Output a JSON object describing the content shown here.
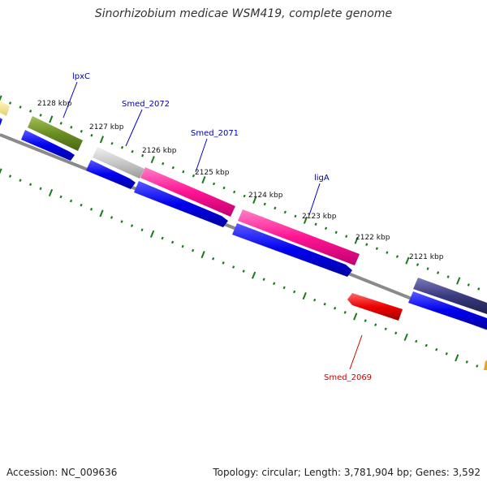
{
  "title": "Sinorhizobium medicae WSM419, complete genome",
  "footer": {
    "accession": "Accession: NC_009636",
    "summary": "Topology: circular; Length: 3,781,904 bp; Genes: 3,592"
  },
  "tick_labels": [
    "2128 kbp",
    "2127 kbp",
    "2126 kbp",
    "2125 kbp",
    "2124 kbp",
    "2123 kbp",
    "2122 kbp",
    "2121 kbp"
  ],
  "gene_labels": [
    {
      "name": "lpxC",
      "color": "#0000aa"
    },
    {
      "name": "Smed_2072",
      "color": "#0000aa"
    },
    {
      "name": "Smed_2071",
      "color": "#0000aa"
    },
    {
      "name": "ligA",
      "color": "#0000aa"
    },
    {
      "name": "Smed_2069",
      "color": "#cc0000"
    }
  ],
  "colors": {
    "backbone": "#808080",
    "cds": "#0000ee",
    "tick": "#1a7a1a",
    "olive_gene": "#6b8e23",
    "grey_gene": "#c0c0c0",
    "pink_gene": "#ff1493",
    "navy_gene": "#3a3a80",
    "red_gene": "#ee0000",
    "yellow_gene": "#f0e68c"
  }
}
